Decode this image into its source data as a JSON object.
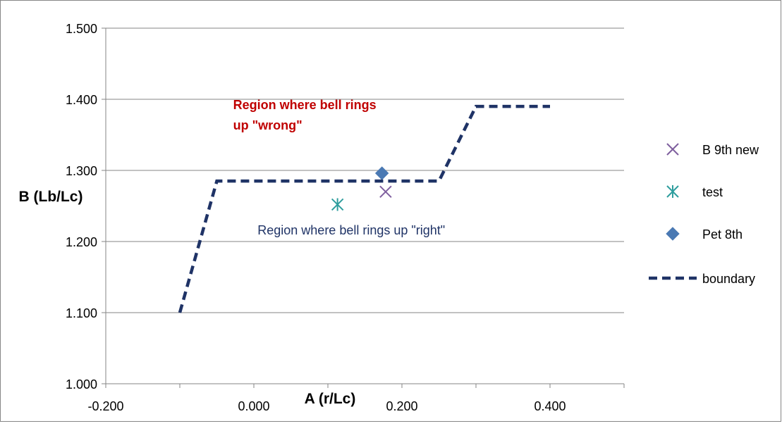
{
  "chart_data": {
    "type": "scatter",
    "title": "",
    "xlabel": "A (r/Lc)",
    "ylabel": "B (Lb/Lc)",
    "xlim": [
      -0.2,
      0.5
    ],
    "ylim": [
      1.0,
      1.5
    ],
    "x_ticks": [
      -0.2,
      0.0,
      0.2,
      0.4
    ],
    "x_tick_labels": [
      "-0.200",
      "0.000",
      "0.200",
      "0.400"
    ],
    "y_ticks": [
      1.0,
      1.1,
      1.2,
      1.3,
      1.4,
      1.5
    ],
    "y_tick_labels": [
      "1.000",
      "1.100",
      "1.200",
      "1.300",
      "1.400",
      "1.500"
    ],
    "grid": "horizontal",
    "legend_position": "right",
    "series": [
      {
        "name": "B 9th new",
        "type": "scatter",
        "marker": "x",
        "color": "#7f5f9f",
        "points": [
          {
            "x": 0.178,
            "y": 1.27
          }
        ]
      },
      {
        "name": "test",
        "type": "scatter",
        "marker": "asterisk",
        "color": "#2f9e9e",
        "points": [
          {
            "x": 0.113,
            "y": 1.252
          }
        ]
      },
      {
        "name": "Pet 8th",
        "type": "scatter",
        "marker": "diamond",
        "color": "#4a79b3",
        "points": [
          {
            "x": 0.173,
            "y": 1.296
          }
        ]
      },
      {
        "name": "boundary",
        "type": "line",
        "style": "dashed",
        "color": "#1f3366",
        "points": [
          {
            "x": -0.1,
            "y": 1.1
          },
          {
            "x": -0.05,
            "y": 1.285
          },
          {
            "x": 0.25,
            "y": 1.285
          },
          {
            "x": 0.3,
            "y": 1.39
          },
          {
            "x": 0.4,
            "y": 1.39
          }
        ]
      }
    ],
    "annotations": [
      {
        "text_lines": [
          "Region where bell rings",
          "up \"wrong\""
        ],
        "color": "#c00000",
        "bold": true,
        "anchor": {
          "x": -0.028,
          "y": 1.386
        }
      },
      {
        "text_lines": [
          "Region where bell rings up \"right\""
        ],
        "color": "#1f3366",
        "bold": false,
        "anchor": {
          "x": 0.005,
          "y": 1.21
        }
      }
    ]
  }
}
